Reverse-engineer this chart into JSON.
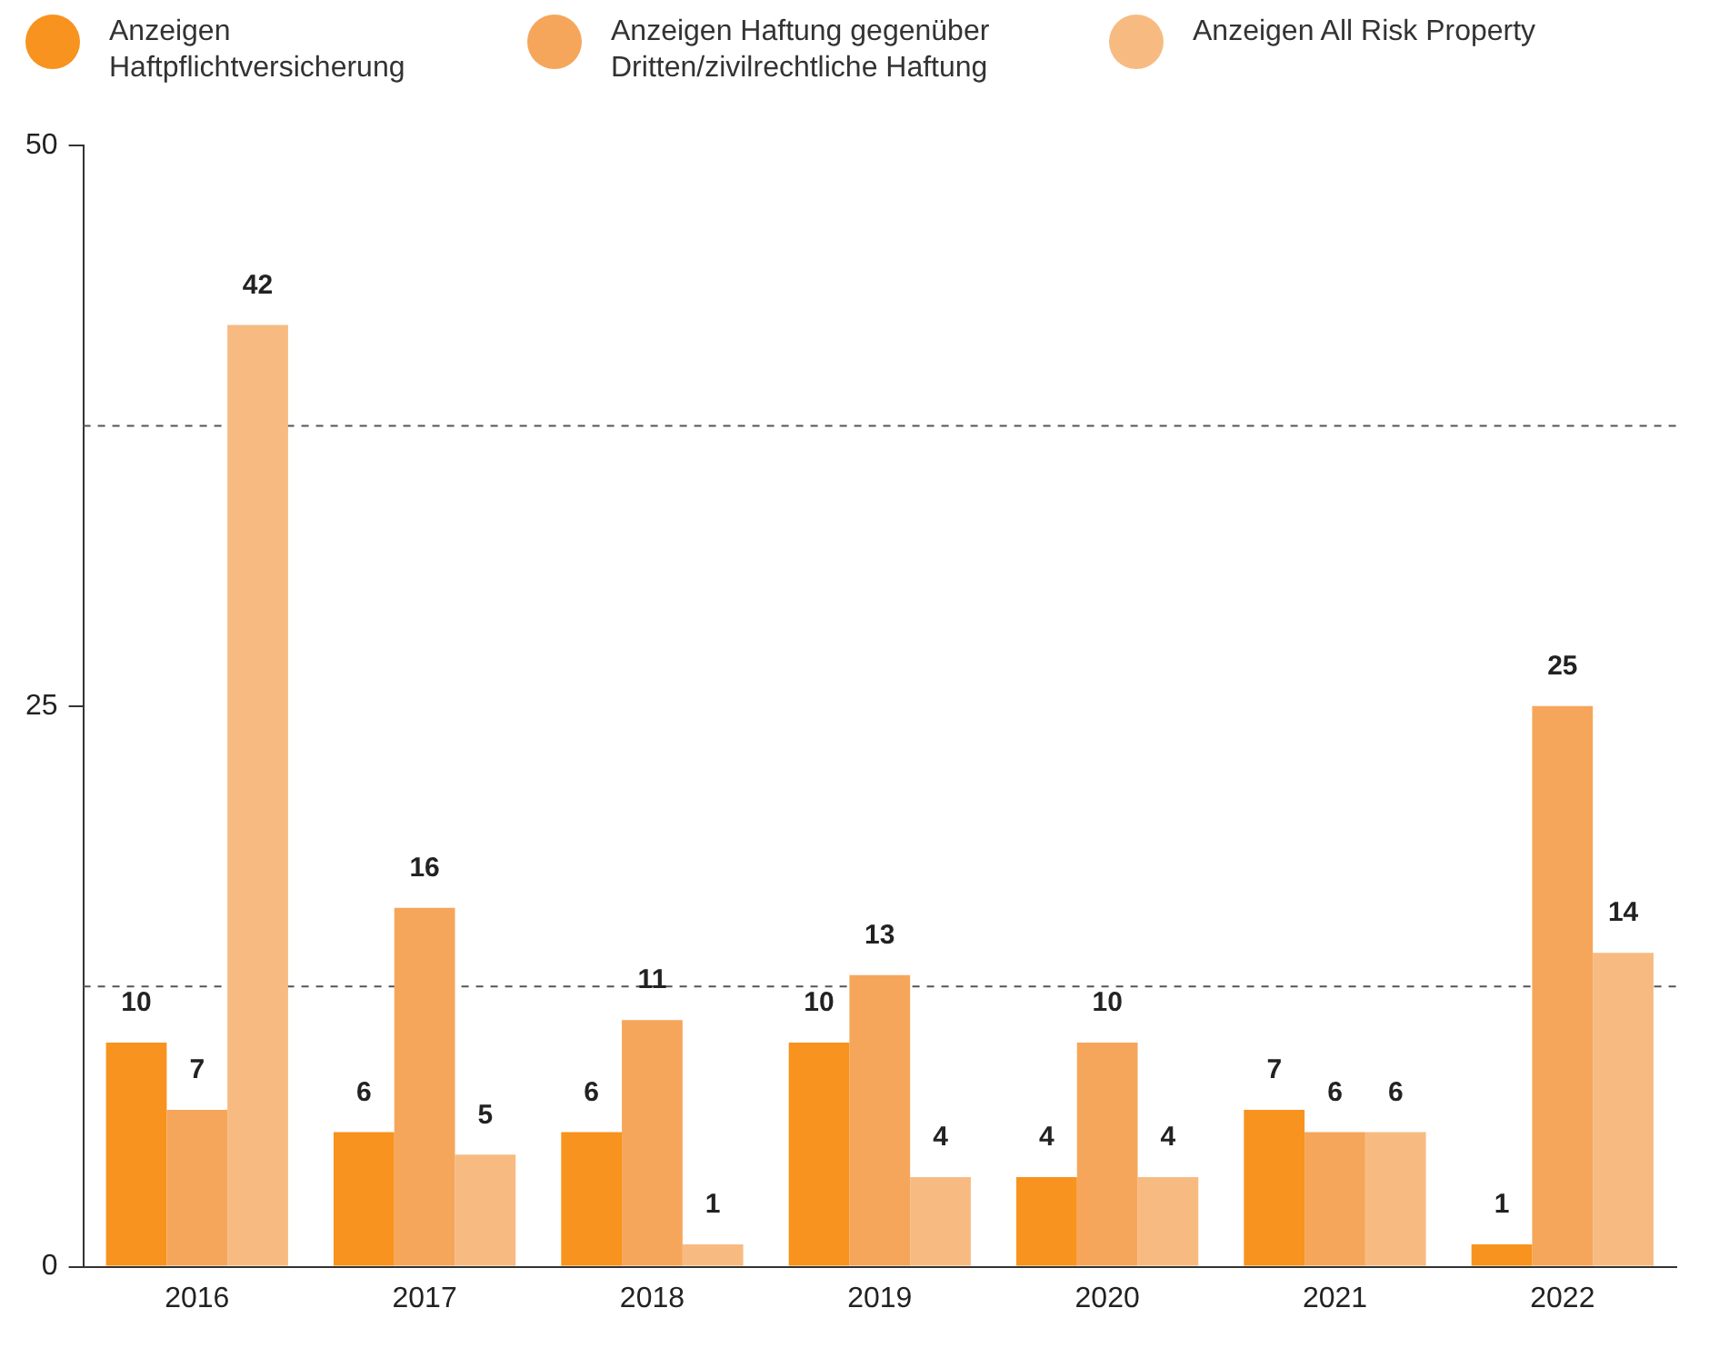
{
  "chart_data": {
    "type": "bar",
    "categories": [
      "2016",
      "2017",
      "2018",
      "2019",
      "2020",
      "2021",
      "2022"
    ],
    "series": [
      {
        "name": "Anzeigen Haftpflichtversicherung",
        "color": "#f7931e",
        "values": [
          10,
          6,
          6,
          10,
          4,
          7,
          1
        ]
      },
      {
        "name": "Anzeigen Haftung gegenüber Dritten/zivilrechtliche Haftung",
        "color": "#f5a65b",
        "values": [
          7,
          16,
          11,
          13,
          10,
          6,
          25
        ]
      },
      {
        "name": "Anzeigen All Risk Property",
        "color": "#f7bb82",
        "values": [
          42,
          5,
          1,
          4,
          4,
          6,
          14
        ]
      }
    ],
    "ylim": [
      0,
      50
    ],
    "yticks": [
      0,
      25,
      50
    ],
    "ref_lines": [
      {
        "axis": "y",
        "value": 12.5,
        "line_style": "dashed",
        "color": "#555555"
      },
      {
        "axis": "y",
        "value": 37.5,
        "line_style": "dashed",
        "color": "#555555"
      }
    ],
    "grid": false,
    "legend": "top",
    "data_labels": true
  }
}
